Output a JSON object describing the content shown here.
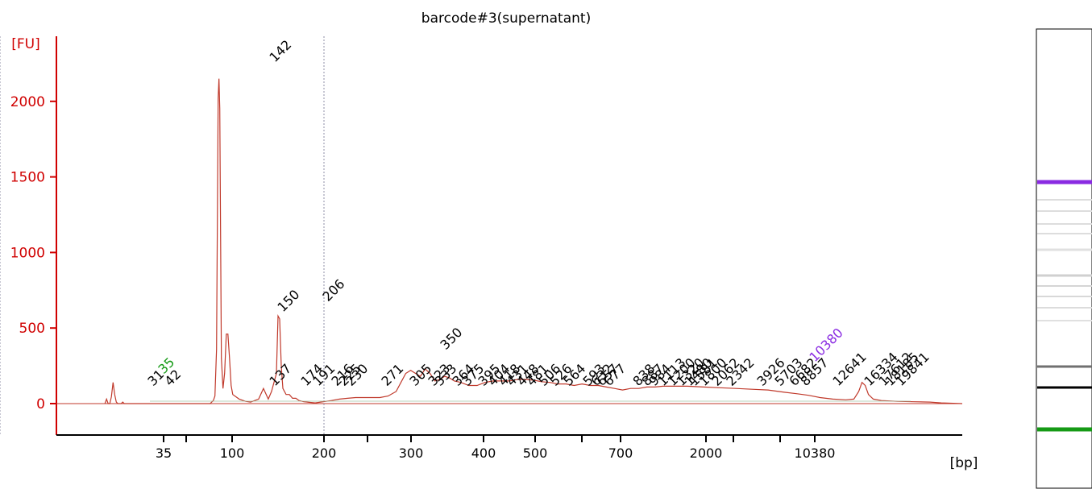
{
  "chart_data": {
    "type": "line",
    "title": "barcode#3(supernatant)",
    "ylabel": "[FU]",
    "xlabel": "[bp]",
    "ylim": [
      -210,
      2330
    ],
    "y_ticks": [
      0,
      500,
      1000,
      1500,
      2000
    ],
    "x_tick_labels": [
      "35",
      "100",
      "200",
      "300",
      "400",
      "500",
      "700",
      "2000",
      "10380"
    ],
    "x_scale": "non-linear (electrophoresis sizing)",
    "grid": false,
    "vertical_reference_lines": [
      "200",
      "800"
    ],
    "colors": {
      "axis": "#d00000",
      "trace": "#c0392b",
      "lower_marker": "#159a15",
      "upper_marker": "#8a2be2",
      "text": "#000000"
    },
    "marker_labels": {
      "lower": "35",
      "upper": "10380"
    },
    "peak_labels": [
      "31",
      "35",
      "42",
      "137",
      "142",
      "150",
      "174",
      "191",
      "206",
      "216",
      "225",
      "230",
      "271",
      "305",
      "323",
      "333",
      "350",
      "364",
      "375",
      "395",
      "404",
      "418",
      "431",
      "448",
      "481",
      "506",
      "526",
      "564",
      "593",
      "632",
      "657",
      "677",
      "838",
      "887",
      "984",
      "1113",
      "1200",
      "1320",
      "1480",
      "1581",
      "1800",
      "2062",
      "2342",
      "3926",
      "5703",
      "6682",
      "8857",
      "10380",
      "12641",
      "16334",
      "17612",
      "18185",
      "19841"
    ],
    "series": [
      {
        "points": [
          [
            30.0,
            0
          ],
          [
            31.0,
            30
          ],
          [
            32.0,
            0
          ],
          [
            33.0,
            0
          ],
          [
            34.0,
            45
          ],
          [
            35.0,
            140
          ],
          [
            36.0,
            60
          ],
          [
            37.0,
            10
          ],
          [
            38.0,
            0
          ],
          [
            40.0,
            0
          ],
          [
            41.0,
            10
          ],
          [
            42.0,
            0
          ],
          [
            70.0,
            0
          ],
          [
            95.0,
            0
          ],
          [
            97.0,
            20
          ],
          [
            98.0,
            50
          ],
          [
            99.0,
            360
          ],
          [
            100.0,
            2020
          ],
          [
            100.5,
            2150
          ],
          [
            101.0,
            1950
          ],
          [
            102.0,
            300
          ],
          [
            103.0,
            100
          ],
          [
            104.0,
            200
          ],
          [
            105.0,
            460
          ],
          [
            106.0,
            460
          ],
          [
            107.0,
            300
          ],
          [
            108.0,
            120
          ],
          [
            109.0,
            60
          ],
          [
            113.0,
            30
          ],
          [
            117.0,
            15
          ],
          [
            120.0,
            10
          ],
          [
            125.0,
            30
          ],
          [
            128.0,
            100
          ],
          [
            131.0,
            30
          ],
          [
            133.0,
            80
          ],
          [
            136.0,
            200
          ],
          [
            137.0,
            580
          ],
          [
            138.0,
            560
          ],
          [
            139.0,
            250
          ],
          [
            140.0,
            100
          ],
          [
            142.0,
            60
          ],
          [
            144.0,
            60
          ],
          [
            146.0,
            35
          ],
          [
            148.0,
            35
          ],
          [
            150.0,
            20
          ],
          [
            153.0,
            12
          ],
          [
            160.0,
            5
          ],
          [
            170.0,
            20
          ],
          [
            175.0,
            30
          ],
          [
            180.0,
            35
          ],
          [
            185.0,
            40
          ],
          [
            190.0,
            40
          ],
          [
            195.0,
            40
          ],
          [
            200.0,
            40
          ],
          [
            205.0,
            50
          ],
          [
            210.0,
            80
          ],
          [
            213.0,
            140
          ],
          [
            216.0,
            200
          ],
          [
            219.0,
            220
          ],
          [
            222.0,
            200
          ],
          [
            225.0,
            180
          ],
          [
            228.0,
            230
          ],
          [
            231.0,
            200
          ],
          [
            234.0,
            150
          ],
          [
            237.0,
            160
          ],
          [
            240.0,
            180
          ],
          [
            243.0,
            170
          ],
          [
            246.0,
            150
          ],
          [
            250.0,
            140
          ],
          [
            255.0,
            120
          ],
          [
            260.0,
            120
          ],
          [
            265.0,
            140
          ],
          [
            270.0,
            150
          ],
          [
            275.0,
            150
          ],
          [
            280.0,
            150
          ],
          [
            285.0,
            160
          ],
          [
            290.0,
            160
          ],
          [
            295.0,
            155
          ],
          [
            300.0,
            145
          ],
          [
            305.0,
            140
          ],
          [
            310.0,
            130
          ],
          [
            315.0,
            130
          ],
          [
            320.0,
            120
          ],
          [
            325.0,
            130
          ],
          [
            330.0,
            120
          ],
          [
            335.0,
            120
          ],
          [
            340.0,
            110
          ],
          [
            345.0,
            100
          ],
          [
            350.0,
            90
          ],
          [
            355.0,
            100
          ],
          [
            360.0,
            100
          ],
          [
            365.0,
            110
          ],
          [
            370.0,
            110
          ],
          [
            375.0,
            115
          ],
          [
            380.0,
            115
          ],
          [
            390.0,
            115
          ],
          [
            400.0,
            110
          ],
          [
            410.0,
            105
          ],
          [
            420.0,
            100
          ],
          [
            430.0,
            95
          ],
          [
            440.0,
            90
          ],
          [
            450.0,
            75
          ],
          [
            458.0,
            65
          ],
          [
            465.0,
            55
          ],
          [
            472.0,
            40
          ],
          [
            480.0,
            30
          ],
          [
            488.0,
            25
          ],
          [
            493.0,
            30
          ],
          [
            496.0,
            80
          ],
          [
            498.0,
            140
          ],
          [
            500.0,
            120
          ],
          [
            502.0,
            60
          ],
          [
            505.0,
            30
          ],
          [
            510.0,
            20
          ],
          [
            520.0,
            15
          ],
          [
            530.0,
            12
          ],
          [
            540.0,
            10
          ],
          [
            547.0,
            5
          ],
          [
            560.0,
            0
          ]
        ]
      }
    ]
  }
}
